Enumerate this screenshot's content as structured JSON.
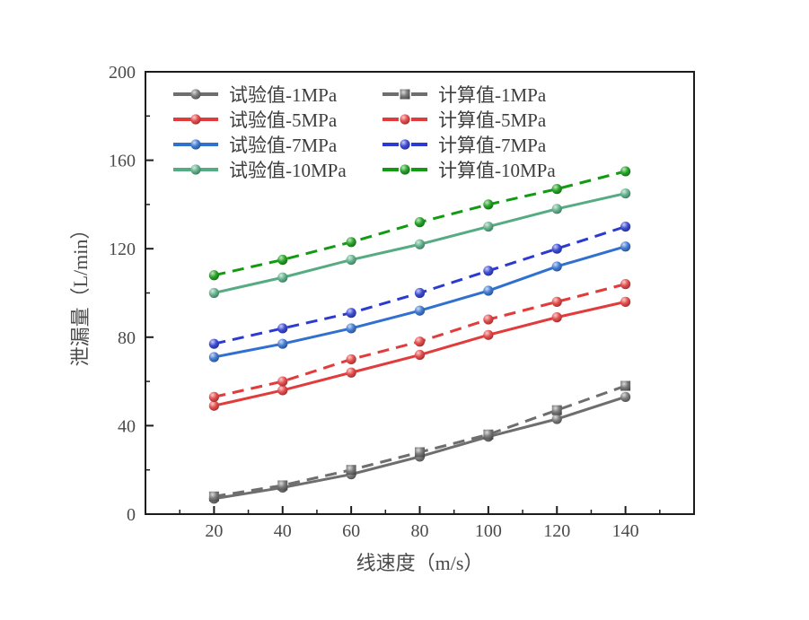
{
  "figure": {
    "background": "#ffffff",
    "axis_color": "#1c1c1c",
    "text_color": "#4a4a4a"
  },
  "chart_data": {
    "type": "line",
    "title": "",
    "xlabel": "线速度（m/s）",
    "ylabel": "泄漏量（L/min）",
    "xlim": [
      0,
      160
    ],
    "ylim": [
      0,
      200
    ],
    "x_major_ticks": [
      20,
      40,
      60,
      80,
      100,
      120,
      140
    ],
    "x_minor_step": 10,
    "y_major_ticks": [
      0,
      40,
      80,
      120,
      160,
      200
    ],
    "y_minor_step": 20,
    "grid": false,
    "legend_position": "upper-left-inside",
    "legend_columns": 2,
    "x": [
      20,
      40,
      60,
      80,
      100,
      120,
      140
    ],
    "series": [
      {
        "name": "试验值-1MPa",
        "color": "#6e6e6e",
        "line": "solid",
        "marker": "circle",
        "values": [
          7,
          12,
          18,
          26,
          35,
          43,
          53
        ]
      },
      {
        "name": "计算值-1MPa",
        "color": "#6e6e6e",
        "line": "dashed",
        "marker": "square",
        "values": [
          8,
          13,
          20,
          28,
          36,
          47,
          58
        ]
      },
      {
        "name": "试验值-5MPa",
        "color": "#e23b3b",
        "line": "solid",
        "marker": "circle",
        "values": [
          49,
          56,
          64,
          72,
          81,
          89,
          96
        ]
      },
      {
        "name": "计算值-5MPa",
        "color": "#e23b3b",
        "line": "dashed",
        "marker": "circle",
        "values": [
          53,
          60,
          70,
          78,
          88,
          96,
          104
        ]
      },
      {
        "name": "试验值-7MPa",
        "color": "#3070cf",
        "line": "solid",
        "marker": "circle",
        "values": [
          71,
          77,
          84,
          92,
          101,
          112,
          121
        ]
      },
      {
        "name": "计算值-7MPa",
        "color": "#2b3ad0",
        "line": "dashed",
        "marker": "circle",
        "values": [
          77,
          84,
          91,
          100,
          110,
          120,
          130
        ]
      },
      {
        "name": "试验值-10MPa",
        "color": "#55ab82",
        "line": "solid",
        "marker": "circle",
        "values": [
          100,
          107,
          115,
          122,
          130,
          138,
          145
        ]
      },
      {
        "name": "计算值-10MPa",
        "color": "#129a12",
        "line": "dashed",
        "marker": "circle",
        "values": [
          108,
          115,
          123,
          132,
          140,
          147,
          155
        ]
      }
    ]
  }
}
